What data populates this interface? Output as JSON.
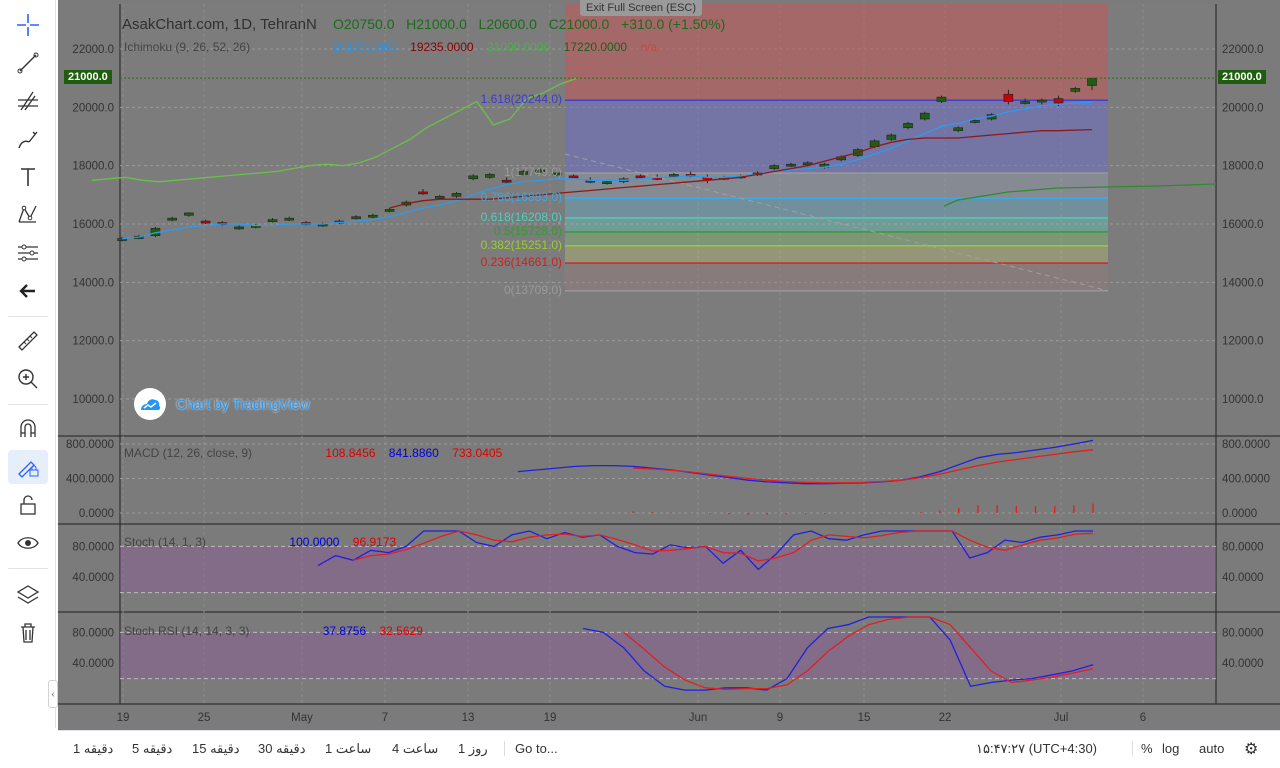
{
  "window": {
    "exit_fullscreen": "Exit Full Screen (ESC)"
  },
  "symbol": {
    "name": "AsakChart.com, 1D, TehranN",
    "open": "O20750.0",
    "high": "H21000.0",
    "low": "L20600.0",
    "close": "C21000.0",
    "change": "+310.0 (+1.50%)"
  },
  "indicators": {
    "ichimoku": {
      "label": "Ichimoku (9, 26, 52, 26)",
      "v1": "20170.0000",
      "v2": "19235.0000",
      "v3": "21000.0000",
      "v4": "17220.0000",
      "v5": "n/a"
    },
    "macd": {
      "label": "MACD (12, 26, close, 9)",
      "v1": "108.8456",
      "v2": "841.8860",
      "v3": "733.0405"
    },
    "stoch": {
      "label": "Stoch (14, 1, 3)",
      "v1": "100.0000",
      "v2": "96.9173"
    },
    "stoch_rsi": {
      "label": "Stoch RSI (14, 14, 3, 3)",
      "v1": "37.8756",
      "v2": "32.5629"
    }
  },
  "price_axis": {
    "ticks": [
      "22000.0",
      "20000.0",
      "18000.0",
      "16000.0",
      "14000.0",
      "12000.0",
      "10000.0"
    ],
    "current": "21000.0"
  },
  "macd_axis": [
    "800.0000",
    "400.0000",
    "0.0000"
  ],
  "stoch_axis": [
    "80.0000",
    "40.0000"
  ],
  "stochrsi_axis": [
    "80.0000",
    "40.0000"
  ],
  "time_axis": [
    "19",
    "25",
    "May",
    "7",
    "13",
    "19",
    "Jun",
    "9",
    "15",
    "22",
    "Jul",
    "6"
  ],
  "fib_levels": [
    {
      "label": "1.618(20244.0)",
      "color": "#3a3ad0"
    },
    {
      "label": "1(17749.0)",
      "color": "#9a9a9a"
    },
    {
      "label": "0.786(16883.0)",
      "color": "#3fa8e0"
    },
    {
      "label": "0.618(16208.0)",
      "color": "#4ed0c0"
    },
    {
      "label": "0.5(15728.0)",
      "color": "#2e9e2e"
    },
    {
      "label": "0.382(15251.0)",
      "color": "#9acd32"
    },
    {
      "label": "0.236(14661.0)",
      "color": "#d02020"
    },
    {
      "label": "0(13709.0)",
      "color": "#9a9a9a"
    }
  ],
  "watermark": "Chart by TradingView",
  "bottom_bar": {
    "intervals": [
      "1 دقیقه",
      "5 دقیقه",
      "15 دقیقه",
      "30 دقیقه",
      "1 ساعت",
      "4 ساعت",
      "1 روز"
    ],
    "goto": "Go to...",
    "clock": "۱۵:۴۷:۲۷ (UTC+4:30)",
    "percent": "%",
    "log": "log",
    "auto": "auto"
  },
  "colors": {
    "up_candle": "#1f5e0f",
    "down_candle": "#c8000a",
    "chart_bg": "#7b7b7b"
  },
  "chart_data": {
    "type": "candlestick",
    "x_labels": [
      "19",
      "25",
      "May",
      "7",
      "13",
      "19",
      "Jun",
      "9",
      "15",
      "22",
      "Jul",
      "6"
    ],
    "price_ylim": [
      9000,
      23000
    ],
    "candles": [
      [
        15480,
        15560,
        15400,
        15500
      ],
      [
        15500,
        15620,
        15480,
        15580
      ],
      [
        15600,
        15900,
        15550,
        15850
      ],
      [
        16150,
        16250,
        16100,
        16200
      ],
      [
        16300,
        16400,
        16250,
        16380
      ],
      [
        16100,
        16150,
        16000,
        16050
      ],
      [
        16050,
        16100,
        15950,
        16000
      ],
      [
        15850,
        15950,
        15800,
        15900
      ],
      [
        15900,
        16000,
        15850,
        15950
      ],
      [
        16100,
        16200,
        16050,
        16150
      ],
      [
        16150,
        16250,
        16100,
        16200
      ],
      [
        16050,
        16100,
        15950,
        16000
      ],
      [
        15950,
        16050,
        15900,
        16000
      ],
      [
        16050,
        16150,
        16000,
        16100
      ],
      [
        16200,
        16300,
        16150,
        16250
      ],
      [
        16250,
        16350,
        16200,
        16300
      ],
      [
        16450,
        16550,
        16400,
        16500
      ],
      [
        16650,
        16800,
        16600,
        16750
      ],
      [
        17100,
        17200,
        17000,
        17050
      ],
      [
        16900,
        17000,
        16850,
        16950
      ],
      [
        16950,
        17100,
        16900,
        17050
      ],
      [
        17550,
        17700,
        17500,
        17650
      ],
      [
        17600,
        17750,
        17550,
        17700
      ],
      [
        17500,
        17600,
        17400,
        17450
      ],
      [
        17700,
        17850,
        17650,
        17800
      ],
      [
        17800,
        17900,
        17750,
        17850
      ],
      [
        17700,
        17800,
        17650,
        17750
      ],
      [
        17650,
        17700,
        17550,
        17600
      ],
      [
        17500,
        17600,
        17400,
        17450
      ],
      [
        17400,
        17500,
        17350,
        17450
      ],
      [
        17450,
        17600,
        17400,
        17550
      ],
      [
        17650,
        17700,
        17550,
        17600
      ],
      [
        17600,
        17700,
        17500,
        17550
      ],
      [
        17650,
        17750,
        17600,
        17700
      ],
      [
        17700,
        17800,
        17600,
        17650
      ],
      [
        17600,
        17700,
        17400,
        17550
      ],
      [
        17550,
        17650,
        17500,
        17600
      ],
      [
        17600,
        17700,
        17550,
        17650
      ],
      [
        17700,
        17800,
        17650,
        17750
      ],
      [
        17900,
        18050,
        17850,
        18000
      ],
      [
        18000,
        18100,
        17950,
        18050
      ],
      [
        18050,
        18150,
        18000,
        18100
      ],
      [
        17950,
        18100,
        17900,
        18050
      ],
      [
        18200,
        18350,
        18150,
        18300
      ],
      [
        18350,
        18600,
        18300,
        18550
      ],
      [
        18650,
        18900,
        18600,
        18850
      ],
      [
        18900,
        19100,
        18850,
        19050
      ],
      [
        19300,
        19500,
        19250,
        19450
      ],
      [
        19600,
        19850,
        19550,
        19800
      ],
      [
        20200,
        20400,
        20150,
        20350
      ],
      [
        19200,
        19350,
        19150,
        19300
      ],
      [
        19500,
        19600,
        19450,
        19550
      ],
      [
        19600,
        19800,
        19550,
        19750
      ],
      [
        20450,
        20600,
        20100,
        20200
      ],
      [
        20150,
        20300,
        20100,
        20200
      ],
      [
        20200,
        20300,
        20100,
        20250
      ],
      [
        20300,
        20400,
        20050,
        20150
      ],
      [
        20550,
        20700,
        20500,
        20650
      ],
      [
        20750,
        21000,
        20600,
        21000
      ]
    ],
    "fib_retracement": [
      {
        "level": 1.618,
        "price": 20244.0
      },
      {
        "level": 1,
        "price": 17749.0
      },
      {
        "level": 0.786,
        "price": 16883.0
      },
      {
        "level": 0.618,
        "price": 16208.0
      },
      {
        "level": 0.5,
        "price": 15728.0
      },
      {
        "level": 0.382,
        "price": 15251.0
      },
      {
        "level": 0.236,
        "price": 14661.0
      },
      {
        "level": 0,
        "price": 13709.0
      }
    ],
    "ichimoku": {
      "conversion": [
        15500,
        15550,
        15700,
        15800,
        15900,
        15950,
        16000,
        16000,
        15950,
        15950,
        16000,
        16000,
        16000,
        16050,
        16100,
        16150,
        16250,
        16400,
        16550,
        16650,
        16800,
        17000,
        17200,
        17350,
        17450,
        17500,
        17550,
        17550,
        17500,
        17500,
        17500,
        17550,
        17600,
        17600,
        17650,
        17600,
        17600,
        17650,
        17700,
        17800,
        17850,
        17900,
        17950,
        18050,
        18200,
        18400,
        18600,
        18850,
        19100,
        19350,
        19450,
        19600,
        19700,
        19850,
        19950,
        20050,
        20100,
        20150,
        20170
      ],
      "base": [
        null,
        null,
        null,
        null,
        null,
        null,
        null,
        null,
        null,
        null,
        null,
        null,
        null,
        null,
        null,
        null,
        16550,
        16700,
        16800,
        16850,
        16850,
        16850,
        16850,
        16900,
        16950,
        17000,
        17050,
        17100,
        17150,
        17200,
        17250,
        17300,
        17350,
        17400,
        17450,
        17500,
        17550,
        17600,
        17700,
        17800,
        17900,
        18000,
        18150,
        18300,
        18450,
        18650,
        18800,
        18900,
        18950,
        18950,
        18950,
        19000,
        19050,
        19100,
        19150,
        19200,
        19200,
        19220,
        19235
      ],
      "lagging": [
        17500,
        17550,
        17600,
        17500,
        17450,
        17500,
        17550,
        17600,
        17650,
        17700,
        17750,
        17800,
        17900,
        18000,
        18050,
        18000,
        18100,
        18300,
        18600,
        18900,
        19300,
        19600,
        19900,
        20200,
        19400,
        19600,
        20300,
        20500,
        20800,
        21000
      ]
    },
    "macd": {
      "ylim": [
        -100,
        900
      ],
      "macd_line": [
        null,
        null,
        null,
        null,
        null,
        null,
        null,
        null,
        null,
        null,
        null,
        null,
        null,
        null,
        null,
        null,
        480,
        500,
        520,
        540,
        550,
        550,
        540,
        520,
        500,
        470,
        440,
        410,
        380,
        360,
        350,
        340,
        340,
        345,
        350,
        360,
        380,
        420,
        480,
        560,
        640,
        680,
        700,
        730,
        760,
        800,
        842
      ],
      "signal_line": [
        null,
        null,
        null,
        null,
        null,
        null,
        null,
        null,
        null,
        null,
        null,
        null,
        null,
        null,
        null,
        null,
        null,
        null,
        null,
        null,
        null,
        null,
        520,
        510,
        495,
        475,
        450,
        425,
        400,
        380,
        365,
        355,
        350,
        350,
        355,
        365,
        380,
        410,
        450,
        500,
        550,
        590,
        620,
        650,
        680,
        710,
        733
      ],
      "histogram": [
        0,
        0,
        0,
        0,
        0,
        0,
        0,
        0,
        0,
        0,
        0,
        0,
        0,
        0,
        0,
        0,
        0,
        0,
        0,
        0,
        0,
        0,
        20,
        10,
        5,
        -5,
        -10,
        -15,
        -20,
        -20,
        -15,
        -15,
        -10,
        -5,
        -5,
        -5,
        0,
        10,
        30,
        60,
        90,
        90,
        80,
        80,
        80,
        90,
        109
      ]
    },
    "stoch": {
      "ylim": [
        0,
        100
      ],
      "k": [
        55,
        68,
        62,
        75,
        72,
        80,
        100,
        100,
        100,
        85,
        80,
        95,
        100,
        90,
        98,
        92,
        95,
        80,
        72,
        70,
        82,
        78,
        80,
        58,
        75,
        50,
        70,
        95,
        100,
        90,
        88,
        95,
        100,
        100,
        100,
        100,
        100,
        65,
        72,
        88,
        85,
        92,
        95,
        100,
        100
      ],
      "d": [
        null,
        null,
        62,
        68,
        70,
        76,
        84,
        93,
        100,
        95,
        88,
        86,
        92,
        95,
        96,
        93,
        95,
        89,
        82,
        74,
        75,
        77,
        80,
        72,
        71,
        61,
        65,
        72,
        88,
        95,
        93,
        91,
        94,
        98,
        100,
        100,
        100,
        88,
        79,
        75,
        82,
        88,
        91,
        96,
        97
      ]
    },
    "stoch_rsi": {
      "ylim": [
        0,
        100
      ],
      "k": [
        85,
        80,
        60,
        30,
        10,
        5,
        5,
        8,
        8,
        5,
        20,
        60,
        85,
        90,
        100,
        100,
        100,
        100,
        70,
        10,
        15,
        18,
        20,
        25,
        30,
        38
      ],
      "d": [
        null,
        null,
        80,
        58,
        35,
        18,
        8,
        6,
        7,
        7,
        12,
        30,
        55,
        75,
        90,
        97,
        100,
        100,
        90,
        60,
        30,
        15,
        18,
        22,
        27,
        33
      ]
    }
  }
}
